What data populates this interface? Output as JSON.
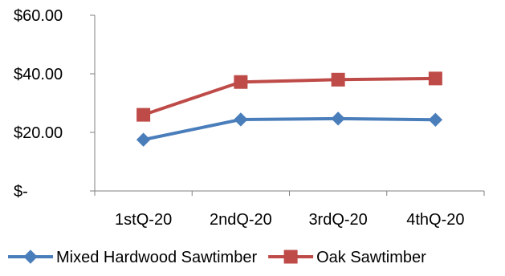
{
  "chart_data": {
    "type": "line",
    "title": "",
    "xlabel": "",
    "ylabel": "",
    "categories": [
      "1stQ-20",
      "2ndQ-20",
      "3rdQ-20",
      "4thQ-20"
    ],
    "ylim": [
      0,
      60
    ],
    "yticks": [
      0,
      20,
      40,
      60
    ],
    "ytick_labels": [
      "$-",
      "$20.00",
      "$40.00",
      "$60.00"
    ],
    "grid": false,
    "legend_position": "bottom",
    "series": [
      {
        "name": "Mixed Hardwood Sawtimber",
        "values": [
          17.5,
          24.4,
          24.7,
          24.3
        ],
        "color": "#4A7EBB",
        "marker": "diamond"
      },
      {
        "name": "Oak Sawtimber",
        "values": [
          26.0,
          37.2,
          38.0,
          38.4
        ],
        "color": "#BE4B48",
        "marker": "square"
      }
    ]
  }
}
